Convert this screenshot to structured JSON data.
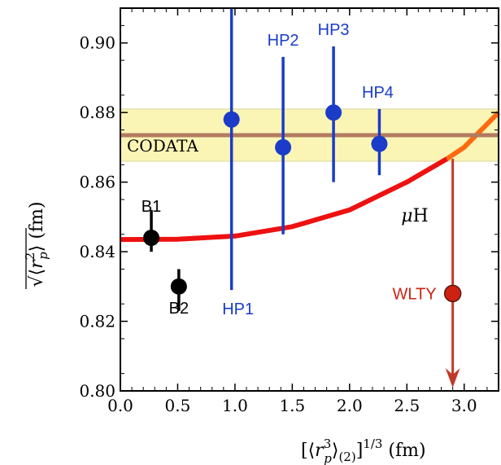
{
  "chart_data": {
    "type": "scatter",
    "xlabel": "[⟨r_p^3⟩_(2)]^(1/3) (fm)",
    "ylabel": "√⟨r_p^2⟩ (fm)",
    "xlim": [
      0.0,
      3.3
    ],
    "ylim": [
      0.8,
      0.91
    ],
    "x_ticks": [
      "0.0",
      "0.5",
      "1.0",
      "1.5",
      "2.0",
      "2.5",
      "3.0"
    ],
    "y_ticks": [
      "0.80",
      "0.82",
      "0.84",
      "0.86",
      "0.88",
      "0.90"
    ],
    "codata": {
      "label": "CODATA",
      "value": 0.8735,
      "band": [
        0.866,
        0.881
      ]
    },
    "muH_curve": {
      "label": "μH",
      "points": [
        [
          0.0,
          0.8435
        ],
        [
          0.5,
          0.8436
        ],
        [
          1.0,
          0.8445
        ],
        [
          1.5,
          0.8472
        ],
        [
          2.0,
          0.852
        ],
        [
          2.5,
          0.86
        ],
        [
          2.85,
          0.8667
        ],
        [
          3.0,
          0.87
        ],
        [
          3.3,
          0.88
        ]
      ]
    },
    "points": [
      {
        "label": "B1",
        "x": 0.27,
        "y": 0.844,
        "ylow": 0.84,
        "yhigh": 0.852,
        "group": "black"
      },
      {
        "label": "B2",
        "x": 0.51,
        "y": 0.83,
        "ylow": 0.823,
        "yhigh": 0.835,
        "group": "black"
      },
      {
        "label": "HP1",
        "x": 0.97,
        "y": 0.878,
        "ylow": 0.829,
        "yhigh": 0.91,
        "group": "blue"
      },
      {
        "label": "HP2",
        "x": 1.42,
        "y": 0.87,
        "ylow": 0.845,
        "yhigh": 0.896,
        "group": "blue"
      },
      {
        "label": "HP3",
        "x": 1.86,
        "y": 0.88,
        "ylow": 0.86,
        "yhigh": 0.899,
        "group": "blue"
      },
      {
        "label": "HP4",
        "x": 2.26,
        "y": 0.871,
        "ylow": 0.862,
        "yhigh": 0.881,
        "group": "blue"
      }
    ],
    "wlty": {
      "label": "WLTY",
      "x": 2.9,
      "y": 0.828
    },
    "grid": false,
    "legend": "none"
  },
  "colors": {
    "blue": "#1a3cc8",
    "black": "#000000",
    "red": "#ee1111",
    "orange": "#ff6a10",
    "codata_line": "#b37a60",
    "band": "#fbf5b5",
    "band_edge": "#d8d49a",
    "wlty": "#cc2211",
    "arrow": "#c0392b",
    "muH_label": "#b5273c"
  }
}
